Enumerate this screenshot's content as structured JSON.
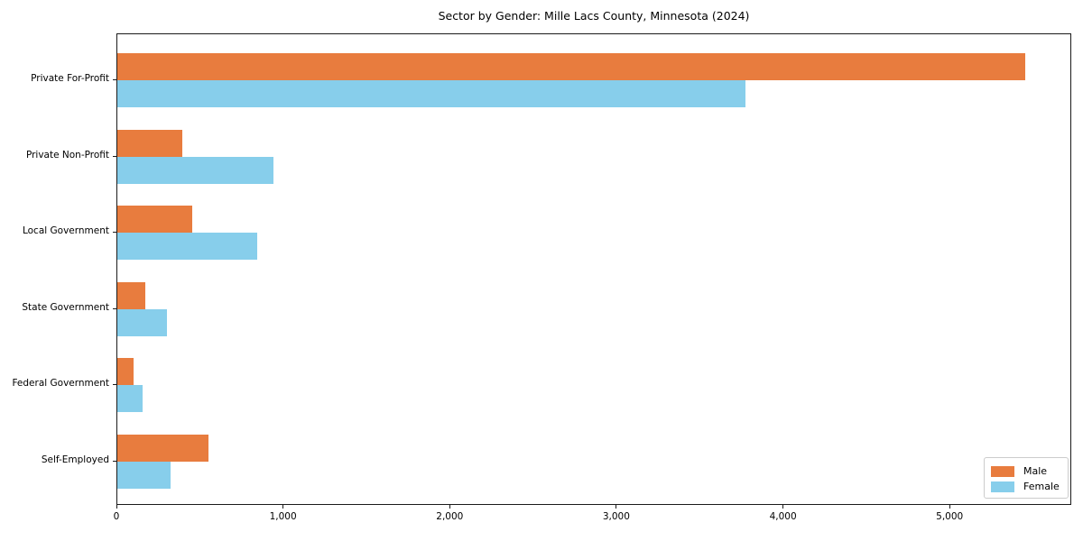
{
  "title": "Sector by Gender: Mille Lacs County, Minnesota (2024)",
  "colors": {
    "male": "#e87c3e",
    "female": "#87ceeb",
    "axis": "#1a1a1a",
    "legend_border": "#cccccc"
  },
  "legend": {
    "position": "lower right",
    "items": [
      {
        "label": "Male",
        "color_key": "male"
      },
      {
        "label": "Female",
        "color_key": "female"
      }
    ]
  },
  "chart_data": {
    "type": "bar",
    "orientation": "horizontal",
    "title": "Sector by Gender: Mille Lacs County, Minnesota (2024)",
    "xlabel": "",
    "ylabel": "",
    "grid": false,
    "legend_position": "lower right",
    "categories": [
      "Private For-Profit",
      "Private Non-Profit",
      "Local Government",
      "State Government",
      "Federal Government",
      "Self-Employed"
    ],
    "series": [
      {
        "name": "Male",
        "color": "#e87c3e",
        "values": [
          5450,
          390,
          450,
          170,
          95,
          545
        ]
      },
      {
        "name": "Female",
        "color": "#87ceeb",
        "values": [
          3770,
          935,
          840,
          300,
          150,
          320
        ]
      }
    ],
    "xlim": [
      0,
      5730
    ],
    "xticks": [
      0,
      1000,
      2000,
      3000,
      4000,
      5000
    ],
    "xtick_labels": [
      "0",
      "1,000",
      "2,000",
      "3,000",
      "4,000",
      "5,000"
    ]
  }
}
